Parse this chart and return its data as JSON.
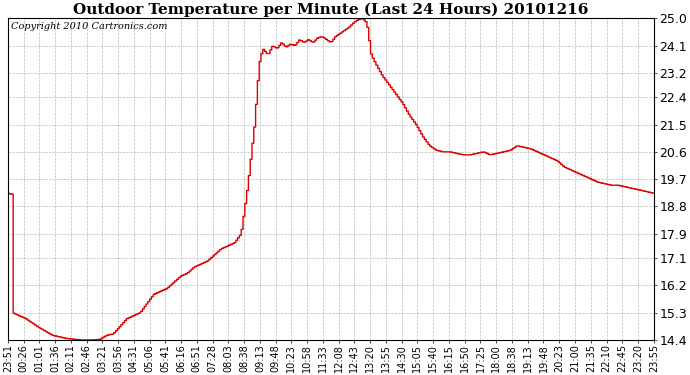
{
  "title": "Outdoor Temperature per Minute (Last 24 Hours) 20101216",
  "copyright_text": "Copyright 2010 Cartronics.com",
  "line_color": "#dd0000",
  "background_color": "#ffffff",
  "grid_color": "#bbbbbb",
  "ylim": [
    14.4,
    25.0
  ],
  "yticks": [
    14.4,
    15.3,
    16.2,
    17.1,
    17.9,
    18.8,
    19.7,
    20.6,
    21.5,
    22.4,
    23.2,
    24.1,
    25.0
  ],
  "xtick_labels": [
    "23:51",
    "00:26",
    "01:01",
    "01:36",
    "02:11",
    "02:46",
    "03:21",
    "03:56",
    "04:31",
    "05:06",
    "05:41",
    "06:16",
    "06:51",
    "07:28",
    "08:03",
    "08:38",
    "09:13",
    "09:48",
    "10:23",
    "10:58",
    "11:33",
    "12:08",
    "12:43",
    "13:20",
    "13:55",
    "14:30",
    "15:05",
    "15:40",
    "16:15",
    "16:50",
    "17:25",
    "18:00",
    "18:38",
    "19:13",
    "19:48",
    "20:23",
    "21:00",
    "21:35",
    "22:10",
    "22:45",
    "23:20",
    "23:55"
  ],
  "title_fontsize": 11,
  "copyright_fontsize": 7,
  "tick_fontsize": 7,
  "ytick_fontsize": 9,
  "line_width": 1.0
}
